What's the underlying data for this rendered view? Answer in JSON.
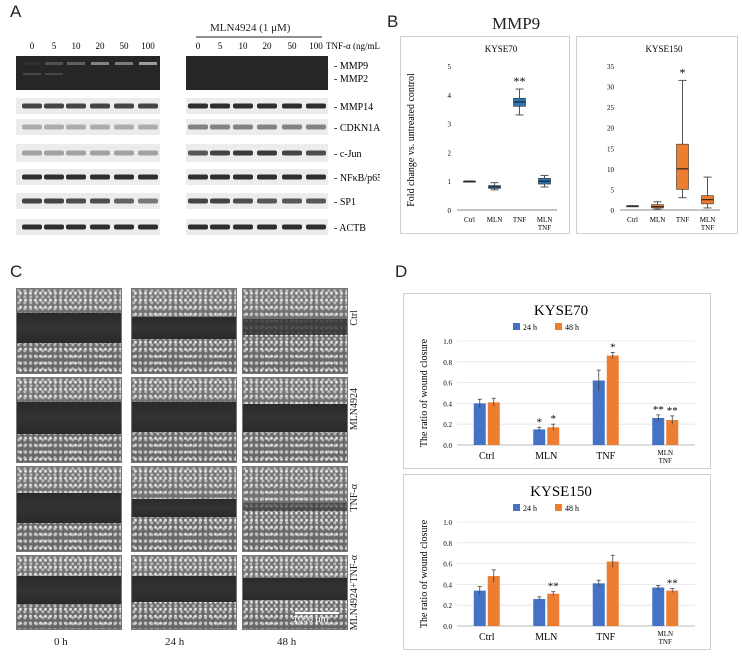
{
  "panels": {
    "a": "A",
    "b": "B",
    "c": "C",
    "d": "D"
  },
  "panel_a": {
    "treatment": "MLN4924 (1 μM)",
    "lanes_left": [
      "0",
      "5",
      "10",
      "20",
      "50",
      "100"
    ],
    "lanes_right": [
      "0",
      "5",
      "10",
      "20",
      "50",
      "100"
    ],
    "dose_label": "TNF-α (ng/mL)",
    "bands": [
      "MMP9",
      "MMP2",
      "MMP14",
      "CDKN1A",
      "c-Jun",
      "NFκB/p65",
      "SP1",
      "ACTB"
    ]
  },
  "panel_b": {
    "title": "MMP9",
    "ylabel": "Fold change vs. untreated control",
    "charts": [
      {
        "name": "KYSE70",
        "color": "#2e75b6",
        "ylim": [
          0,
          5
        ],
        "yticks": [
          "0",
          "1",
          "2",
          "3",
          "4",
          "5"
        ],
        "categories": [
          "Ctrl",
          "MLN",
          "TNF",
          "MLN TNF"
        ],
        "boxes": [
          {
            "min": 1.0,
            "q1": 1.0,
            "median": 1.0,
            "q3": 1.0,
            "max": 1.0
          },
          {
            "min": 0.7,
            "q1": 0.75,
            "median": 0.8,
            "q3": 0.85,
            "max": 0.95
          },
          {
            "min": 3.3,
            "q1": 3.6,
            "median": 3.75,
            "q3": 3.88,
            "max": 4.2
          },
          {
            "min": 0.8,
            "q1": 0.9,
            "median": 1.0,
            "q3": 1.1,
            "max": 1.2
          }
        ],
        "annotations": [
          "",
          "",
          "**",
          ""
        ]
      },
      {
        "name": "KYSE150",
        "color": "#ed7d31",
        "ylim": [
          0,
          35
        ],
        "yticks": [
          "0",
          "5",
          "10",
          "15",
          "20",
          "25",
          "30",
          "35"
        ],
        "categories": [
          "Ctrl",
          "MLN",
          "TNF",
          "MLN TNF"
        ],
        "boxes": [
          {
            "min": 1.0,
            "q1": 1.0,
            "median": 1.0,
            "q3": 1.0,
            "max": 1.0
          },
          {
            "min": 0.2,
            "q1": 0.5,
            "median": 0.8,
            "q3": 1.3,
            "max": 2.0
          },
          {
            "min": 3.0,
            "q1": 5.0,
            "median": 10.0,
            "q3": 16.0,
            "max": 31.5
          },
          {
            "min": 0.5,
            "q1": 1.5,
            "median": 2.5,
            "q3": 3.5,
            "max": 8.0
          }
        ],
        "annotations": [
          "",
          "",
          "*",
          ""
        ]
      }
    ]
  },
  "panel_c": {
    "columns": [
      "0 h",
      "24 h",
      "48 h"
    ],
    "rows": [
      "Ctrl",
      "MLN4924",
      "TNF-α",
      "MLN4924+TNF-α"
    ],
    "scale_bar": "1000 μm"
  },
  "chart_data": [
    {
      "type": "bar",
      "title": "KYSE70",
      "ylabel": "The ratio of wound closure",
      "ylim": [
        0,
        1.0
      ],
      "yticks": [
        "0.0",
        "0.2",
        "0.4",
        "0.6",
        "0.8",
        "1.0"
      ],
      "categories": [
        "Ctrl",
        "MLN",
        "TNF",
        "MLN TNF"
      ],
      "legend": "top",
      "series": [
        {
          "name": "24 h",
          "color": "#4472c4",
          "values": [
            0.4,
            0.15,
            0.62,
            0.26
          ],
          "errors": [
            0.04,
            0.02,
            0.1,
            0.03
          ]
        },
        {
          "name": "48 h",
          "color": "#ed7d31",
          "values": [
            0.41,
            0.17,
            0.86,
            0.24
          ],
          "errors": [
            0.04,
            0.03,
            0.03,
            0.04
          ]
        }
      ],
      "annotations": [
        [
          "",
          ""
        ],
        [
          "*",
          "*"
        ],
        [
          "",
          "*"
        ],
        [
          "**",
          "**"
        ]
      ]
    },
    {
      "type": "bar",
      "title": "KYSE150",
      "ylabel": "The ratio of wound closure",
      "ylim": [
        0,
        1.0
      ],
      "yticks": [
        "0.0",
        "0.2",
        "0.4",
        "0.6",
        "0.8",
        "1.0"
      ],
      "categories": [
        "Ctrl",
        "MLN",
        "TNF",
        "MLN TNF"
      ],
      "legend": "top",
      "series": [
        {
          "name": "24 h",
          "color": "#4472c4",
          "values": [
            0.34,
            0.26,
            0.41,
            0.37
          ],
          "errors": [
            0.04,
            0.02,
            0.03,
            0.02
          ]
        },
        {
          "name": "48 h",
          "color": "#ed7d31",
          "values": [
            0.48,
            0.31,
            0.62,
            0.34
          ],
          "errors": [
            0.06,
            0.02,
            0.06,
            0.02
          ]
        }
      ],
      "annotations": [
        [
          "",
          ""
        ],
        [
          "",
          "**"
        ],
        [
          "",
          ""
        ],
        [
          "",
          "**"
        ]
      ]
    }
  ]
}
